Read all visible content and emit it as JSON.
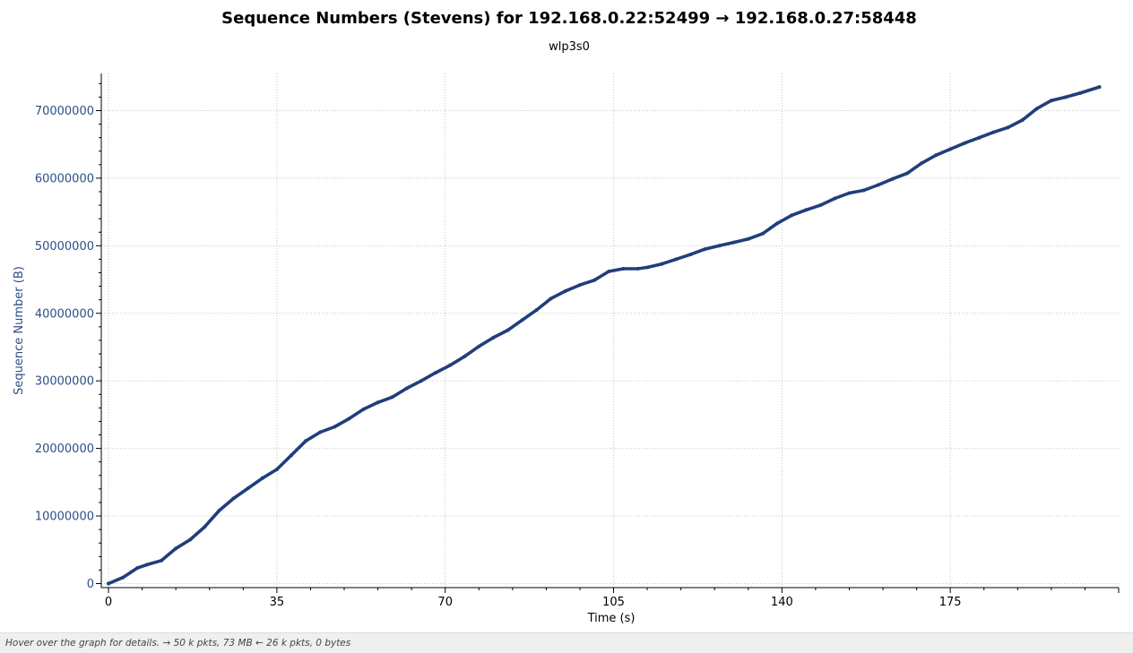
{
  "chart_data": {
    "type": "scatter",
    "title": "Sequence Numbers (Stevens) for 192.168.0.22:52499 → 192.168.0.27:58448",
    "subtitle": "wlp3s0",
    "xlabel": "Time (s)",
    "ylabel": "Sequence Number (B)",
    "xlim": [
      -1.5,
      210
    ],
    "ylim": [
      -600000,
      75500000
    ],
    "x_ticks": [
      0,
      35,
      70,
      105,
      140,
      175
    ],
    "y_ticks": [
      0,
      10000000,
      20000000,
      30000000,
      40000000,
      50000000,
      60000000,
      70000000
    ],
    "x_tick_labels": [
      "0",
      "35",
      "70",
      "105",
      "140",
      "175"
    ],
    "y_tick_labels": [
      "0",
      "10000000",
      "20000000",
      "30000000",
      "40000000",
      "50000000",
      "60000000",
      "70000000"
    ],
    "grid": true,
    "series_color": "#1f3f7a",
    "series": [
      {
        "x": [
          0,
          3,
          6,
          8,
          11,
          14,
          17,
          20,
          23,
          26,
          29,
          32,
          35,
          38,
          41,
          44,
          47,
          50,
          53,
          56,
          59,
          62,
          65,
          68,
          71,
          74,
          77,
          80,
          83,
          86,
          89,
          92,
          95,
          98,
          101,
          104,
          107,
          110,
          112,
          115,
          118,
          121,
          124,
          127,
          130,
          133,
          136,
          139,
          142,
          145,
          148,
          151,
          154,
          157,
          160,
          163,
          166,
          169,
          172,
          175,
          178,
          181,
          184,
          187,
          190,
          193,
          196,
          199,
          202,
          206
        ],
        "y": [
          0,
          900000,
          2300000,
          2800000,
          3400000,
          5200000,
          6500000,
          8400000,
          10800000,
          12600000,
          14100000,
          15600000,
          16900000,
          19000000,
          21100000,
          22400000,
          23200000,
          24400000,
          25800000,
          26800000,
          27600000,
          28900000,
          30000000,
          31200000,
          32300000,
          33600000,
          35100000,
          36400000,
          37500000,
          39000000,
          40500000,
          42200000,
          43300000,
          44200000,
          44900000,
          46200000,
          46600000,
          46600000,
          46800000,
          47300000,
          48000000,
          48700000,
          49500000,
          50000000,
          50500000,
          51000000,
          51800000,
          53300000,
          54500000,
          55300000,
          56000000,
          57000000,
          57800000,
          58200000,
          59000000,
          59900000,
          60700000,
          62200000,
          63400000,
          64300000,
          65200000,
          66000000,
          66800000,
          67500000,
          68600000,
          70300000,
          71500000,
          72000000,
          72600000,
          73500000
        ]
      }
    ]
  },
  "status_bar": {
    "text": "Hover over the graph for details. → 50 k pkts, 73 MB ← 26 k pkts, 0 bytes"
  }
}
